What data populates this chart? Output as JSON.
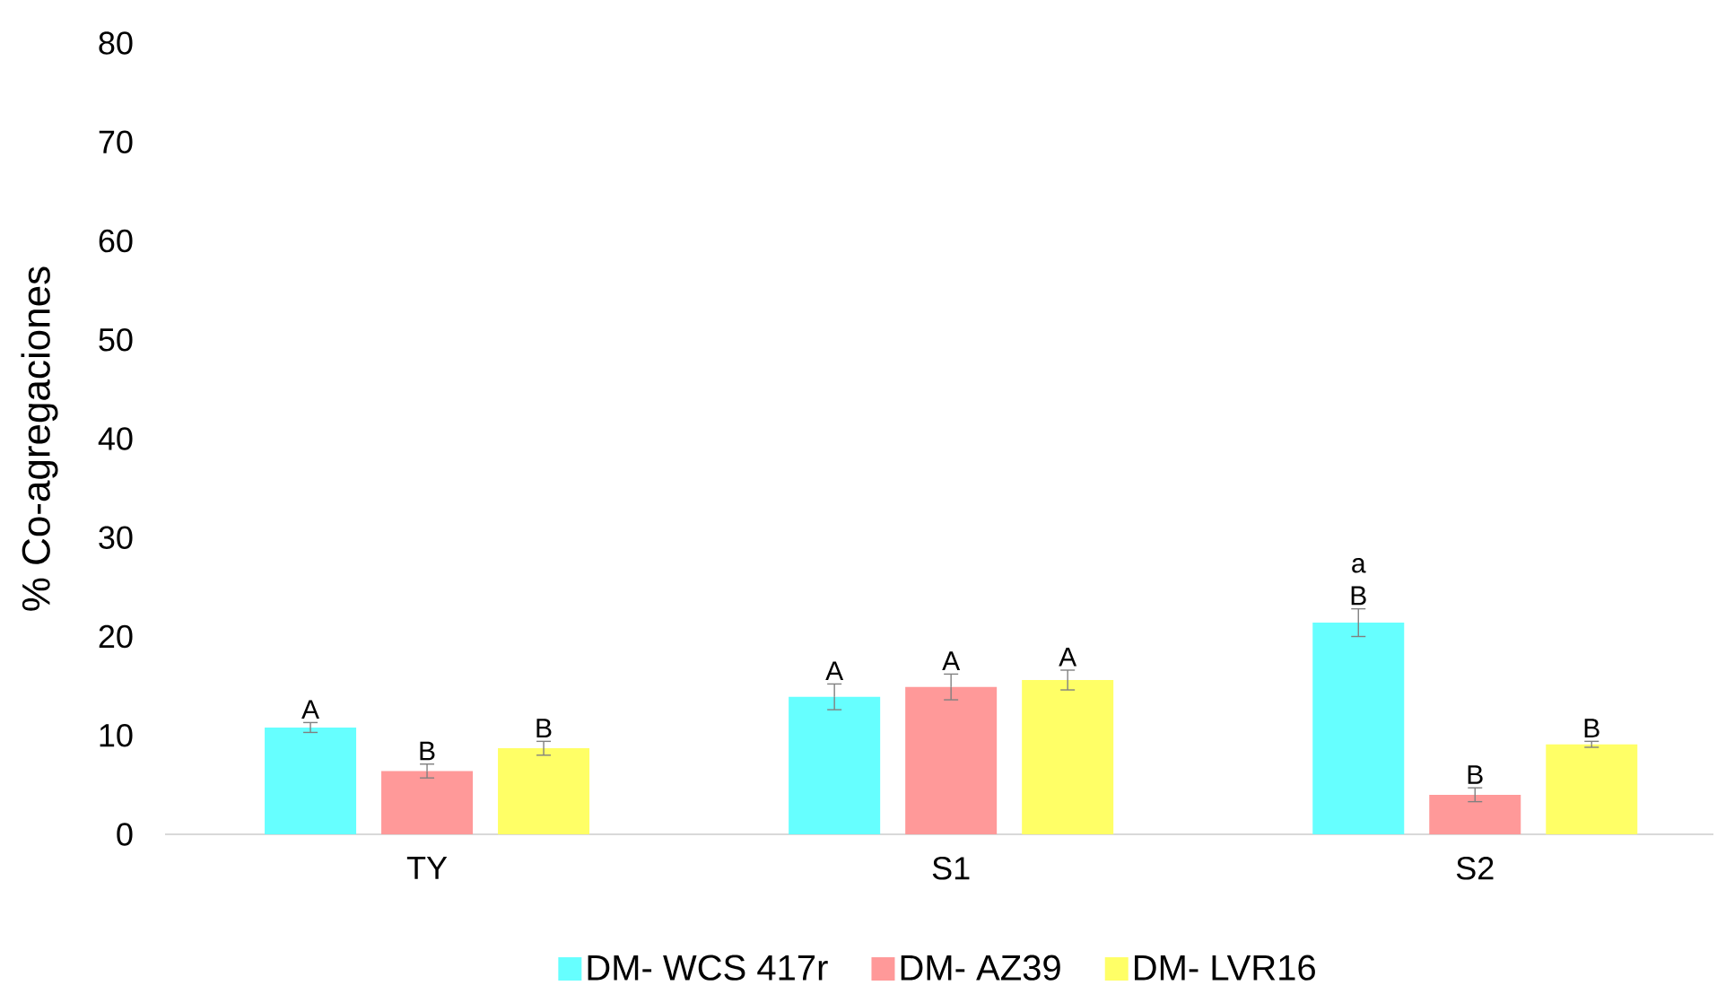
{
  "chart_data": {
    "type": "bar",
    "ylabel": "% Co-agregaciones",
    "categories": [
      "TY",
      "S1",
      "S2"
    ],
    "series": [
      {
        "name": "DM- WCS 417r",
        "color": "#66ffff",
        "values": [
          10.8,
          13.9,
          21.4
        ],
        "errors": [
          0.5,
          1.3,
          1.4
        ],
        "value_labels": [
          "A",
          "A",
          "a B"
        ]
      },
      {
        "name": "DM- AZ39",
        "color": "#ff9999",
        "values": [
          6.4,
          14.9,
          4.0
        ],
        "errors": [
          0.7,
          1.3,
          0.7
        ],
        "value_labels": [
          "B",
          "A",
          "B"
        ]
      },
      {
        "name": "DM- LVR16",
        "color": "#ffff66",
        "values": [
          8.7,
          15.6,
          9.1
        ],
        "errors": [
          0.7,
          1.0,
          0.3
        ],
        "value_labels": [
          "B",
          "A",
          "B"
        ]
      }
    ],
    "ylim": [
      0,
      80
    ],
    "yticks": [
      0,
      10,
      20,
      30,
      40,
      50,
      60,
      70,
      80
    ],
    "legend": "bottom"
  }
}
